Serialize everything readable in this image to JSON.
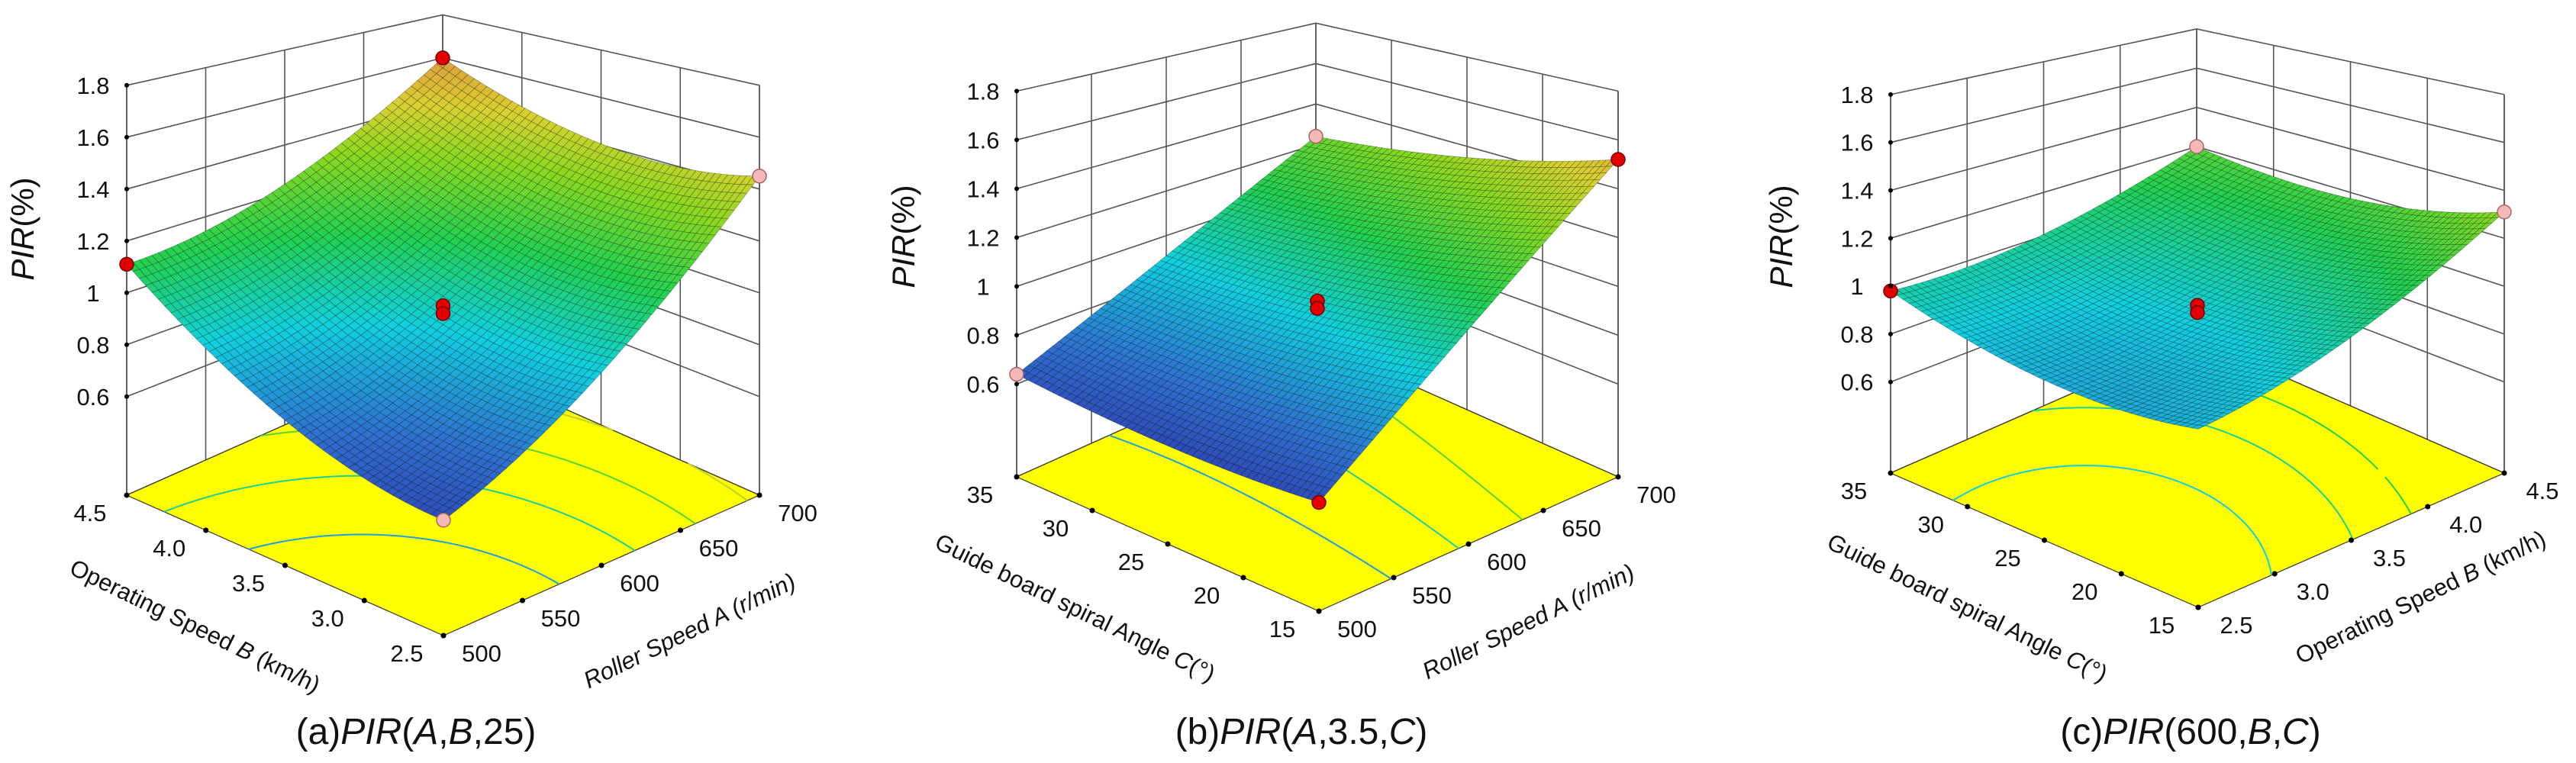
{
  "chart_data": [
    {
      "type": "surface",
      "caption": [
        {
          "t": "(a)"
        },
        {
          "t": "PIR",
          "i": true
        },
        {
          "t": "("
        },
        {
          "t": "A",
          "i": true
        },
        {
          "t": ","
        },
        {
          "t": "B",
          "i": true
        },
        {
          "t": ",25)"
        }
      ],
      "zlabel": [
        {
          "t": "PIR",
          "i": true
        },
        {
          "t": "(%)"
        }
      ],
      "z_ticks": [
        "0.6",
        "0.8",
        "1",
        "1.2",
        "1.4",
        "1.6",
        "1.8"
      ],
      "zlim": [
        0.22,
        1.8
      ],
      "left_axis": {
        "title": [
          {
            "t": "Operating Speed "
          },
          {
            "t": "B",
            "i": true
          },
          {
            "t": " (km/h)"
          }
        ],
        "range": [
          2.5,
          4.5
        ],
        "ticks": [
          "2.5",
          "3.0",
          "3.5",
          "4.0",
          "4.5"
        ]
      },
      "right_axis": {
        "title": [
          {
            "t": "Roller Speed A (r/min)",
            "i": true
          }
        ],
        "range": [
          500,
          700
        ],
        "ticks": [
          "500",
          "550",
          "600",
          "650",
          "700"
        ]
      },
      "surface": {
        "front": 0.6,
        "left": 1.11,
        "right": 1.45,
        "back": 1.6,
        "center": 0.95
      },
      "contour_levels": [
        0.8,
        1.0,
        1.2,
        1.4
      ],
      "design_points": [
        {
          "corner": "back",
          "z": 1.6,
          "kind": "above"
        },
        {
          "corner": "left",
          "z": 1.11,
          "kind": "above"
        },
        {
          "corner": "right",
          "z": 1.45,
          "kind": "below"
        },
        {
          "corner": "front",
          "z": 0.6,
          "kind": "below"
        },
        {
          "corner": "center",
          "z": 0.95,
          "kind": "above"
        },
        {
          "corner": "center",
          "z": 0.92,
          "kind": "above"
        }
      ]
    },
    {
      "type": "surface",
      "caption": [
        {
          "t": "(b)"
        },
        {
          "t": "PIR",
          "i": true
        },
        {
          "t": "("
        },
        {
          "t": "A",
          "i": true
        },
        {
          "t": ",3.5,"
        },
        {
          "t": "C",
          "i": true
        },
        {
          "t": ")"
        }
      ],
      "zlabel": [
        {
          "t": "PIR",
          "i": true
        },
        {
          "t": "(%)"
        }
      ],
      "z_ticks": [
        "0.6",
        "0.8",
        "1",
        "1.2",
        "1.4",
        "1.6",
        "1.8"
      ],
      "zlim": [
        0.22,
        1.8
      ],
      "left_axis": {
        "title": [
          {
            "t": "Guide board spiral Angle "
          },
          {
            "t": "C",
            "i": true
          },
          {
            "t": "(°)"
          }
        ],
        "range": [
          15,
          35
        ],
        "ticks": [
          "15",
          "20",
          "25",
          "30",
          "35"
        ]
      },
      "right_axis": {
        "title": [
          {
            "t": "Roller Speed A (r/min)",
            "i": true
          }
        ],
        "range": [
          500,
          700
        ],
        "ticks": [
          "500",
          "550",
          "600",
          "650",
          "700"
        ]
      },
      "surface": {
        "front": 0.6,
        "left": 0.64,
        "right": 1.52,
        "back": 1.24,
        "center": 0.94
      },
      "contour_levels": [
        0.8,
        1.0,
        1.2
      ],
      "design_points": [
        {
          "corner": "back",
          "z": 1.24,
          "kind": "below"
        },
        {
          "corner": "left",
          "z": 0.64,
          "kind": "below"
        },
        {
          "corner": "right",
          "z": 1.52,
          "kind": "above"
        },
        {
          "corner": "front",
          "z": 0.6,
          "kind": "above"
        },
        {
          "corner": "center",
          "z": 0.94,
          "kind": "above"
        },
        {
          "corner": "center",
          "z": 0.91,
          "kind": "above"
        }
      ]
    },
    {
      "type": "surface",
      "caption": [
        {
          "t": "(c)"
        },
        {
          "t": "PIR",
          "i": true
        },
        {
          "t": "(600,"
        },
        {
          "t": "B",
          "i": true
        },
        {
          "t": ","
        },
        {
          "t": "C",
          "i": true
        },
        {
          "t": ")"
        }
      ],
      "zlabel": [
        {
          "t": "PIR",
          "i": true
        },
        {
          "t": "(%)"
        }
      ],
      "z_ticks": [
        "0.6",
        "0.8",
        "1",
        "1.2",
        "1.4",
        "1.6",
        "1.8"
      ],
      "zlim": [
        0.22,
        1.8
      ],
      "left_axis": {
        "title": [
          {
            "t": "Guide board spiral Angle "
          },
          {
            "t": "C",
            "i": true
          },
          {
            "t": "(°)"
          }
        ],
        "range": [
          15,
          35
        ],
        "ticks": [
          "15",
          "20",
          "25",
          "30",
          "35"
        ]
      },
      "right_axis": {
        "title": [
          {
            "t": "Operating Speed "
          },
          {
            "t": "B",
            "i": true
          },
          {
            "t": " (km/h)"
          }
        ],
        "range": [
          2.5,
          4.5
        ],
        "ticks": [
          "2.5",
          "3.0",
          "3.5",
          "4.0",
          "4.5"
        ]
      },
      "surface": {
        "front": 0.85,
        "left": 0.98,
        "right": 1.31,
        "back": 1.2,
        "center": 0.92
      },
      "contour_levels": [
        0.9,
        1.0,
        1.1
      ],
      "design_points": [
        {
          "corner": "left",
          "z": 0.98,
          "kind": "above"
        },
        {
          "corner": "back",
          "z": 1.2,
          "kind": "below"
        },
        {
          "corner": "right",
          "z": 1.31,
          "kind": "below"
        },
        {
          "corner": "center",
          "z": 0.92,
          "kind": "above"
        },
        {
          "corner": "center",
          "z": 0.89,
          "kind": "above"
        }
      ]
    }
  ],
  "colors": {
    "floor": "#ffff00",
    "grid": "#555555",
    "point_above": "#e00000",
    "point_below": "#f4b8b8",
    "underside": "#0a1a0a",
    "colormap": [
      [
        0.45,
        "#2b1f9a"
      ],
      [
        0.7,
        "#2f6fd0"
      ],
      [
        0.9,
        "#10d0e0"
      ],
      [
        1.1,
        "#22d050"
      ],
      [
        1.3,
        "#88d820"
      ],
      [
        1.45,
        "#d8d030"
      ],
      [
        1.65,
        "#e08a40"
      ],
      [
        1.8,
        "#e04030"
      ]
    ]
  }
}
